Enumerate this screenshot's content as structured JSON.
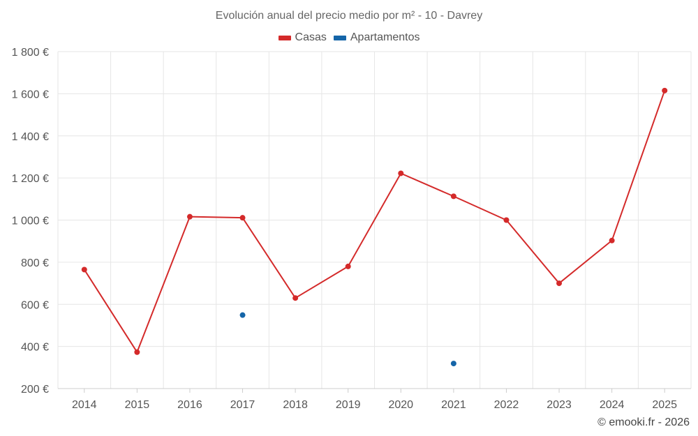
{
  "chart_data": {
    "type": "line",
    "title": "Evolución anual del precio medio por m² - 10 - Davrey",
    "categories": [
      "2014",
      "2015",
      "2016",
      "2017",
      "2018",
      "2019",
      "2020",
      "2021",
      "2022",
      "2023",
      "2024",
      "2025"
    ],
    "series": [
      {
        "name": "Casas",
        "color": "#d42a2a",
        "values": [
          765,
          373,
          1016,
          1011,
          630,
          780,
          1222,
          1113,
          1000,
          700,
          903,
          1615
        ]
      },
      {
        "name": "Apartamentos",
        "color": "#1565a8",
        "values": [
          null,
          null,
          null,
          549,
          null,
          null,
          null,
          319,
          null,
          null,
          null,
          null
        ]
      }
    ],
    "ylim": [
      200,
      1800
    ],
    "yticks": [
      200,
      400,
      600,
      800,
      1000,
      1200,
      1400,
      1600,
      1800
    ],
    "ytick_labels": [
      "200 €",
      "400 €",
      "600 €",
      "800 €",
      "1 000 €",
      "1 200 €",
      "1 400 €",
      "1 600 €",
      "1 800 €"
    ],
    "xlabel": "",
    "ylabel": "",
    "grid": true,
    "legend_position": "top-center"
  },
  "footer": "© emooki.fr - 2026"
}
